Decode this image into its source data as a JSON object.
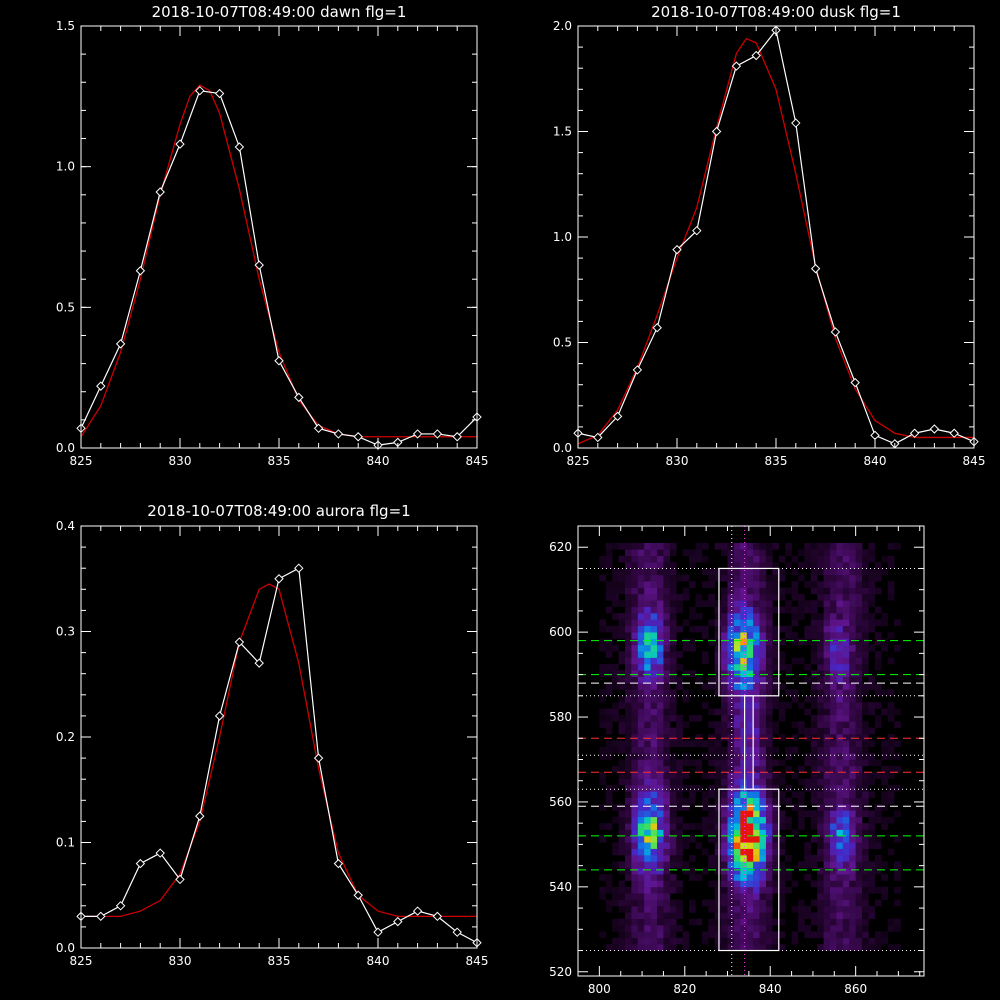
{
  "colors": {
    "background": "#000000",
    "axes": "#ffffff",
    "data": "#ffffff",
    "fit": "#cc0000",
    "guide_green": "#00ff00",
    "guide_red": "#ff3030",
    "guide_white": "#ffffff",
    "guide_magenta": "#ff33ff"
  },
  "chart_data": [
    {
      "type": "line",
      "title": "2018-10-07T08:49:00 dawn flg=1",
      "xlim": [
        825,
        845
      ],
      "ylim": [
        0,
        1.5
      ],
      "xticks": [
        "825",
        "830",
        "835",
        "840",
        "845"
      ],
      "yticks": [
        "0.0",
        "0.5",
        "1.0",
        "1.5"
      ],
      "series": [
        {
          "role": "data",
          "x": [
            825,
            826,
            827,
            828,
            829,
            830,
            831,
            832,
            833,
            834,
            835,
            836,
            837,
            838,
            839,
            840,
            841,
            842,
            843,
            844,
            845
          ],
          "y": [
            0.07,
            0.22,
            0.37,
            0.63,
            0.91,
            1.08,
            1.27,
            1.26,
            1.07,
            0.65,
            0.31,
            0.18,
            0.07,
            0.05,
            0.04,
            0.01,
            0.02,
            0.05,
            0.05,
            0.04,
            0.11
          ]
        },
        {
          "role": "fit",
          "x": [
            825,
            826,
            827,
            828,
            829,
            830,
            830.5,
            831,
            831.5,
            832,
            833,
            834,
            835,
            836,
            837,
            838,
            839,
            840,
            841,
            842,
            843,
            844,
            845
          ],
          "y": [
            0.04,
            0.15,
            0.34,
            0.6,
            0.9,
            1.15,
            1.25,
            1.29,
            1.27,
            1.19,
            0.92,
            0.6,
            0.34,
            0.17,
            0.08,
            0.05,
            0.04,
            0.04,
            0.04,
            0.04,
            0.04,
            0.04,
            0.04
          ]
        }
      ]
    },
    {
      "type": "line",
      "title": "2018-10-07T08:49:00 dusk flg=1",
      "xlim": [
        825,
        845
      ],
      "ylim": [
        0,
        2.0
      ],
      "xticks": [
        "825",
        "830",
        "835",
        "840",
        "845"
      ],
      "yticks": [
        "0.0",
        "0.5",
        "1.0",
        "1.5",
        "2.0"
      ],
      "series": [
        {
          "role": "data",
          "x": [
            825,
            826,
            827,
            828,
            829,
            830,
            831,
            832,
            833,
            834,
            835,
            836,
            837,
            838,
            839,
            840,
            841,
            842,
            843,
            844,
            845
          ],
          "y": [
            0.07,
            0.05,
            0.15,
            0.37,
            0.57,
            0.94,
            1.03,
            1.5,
            1.81,
            1.86,
            1.98,
            1.54,
            0.85,
            0.55,
            0.31,
            0.06,
            0.02,
            0.07,
            0.09,
            0.07,
            0.03
          ]
        },
        {
          "role": "fit",
          "x": [
            825,
            826,
            827,
            828,
            829,
            830,
            831,
            832,
            833,
            833.5,
            834,
            835,
            836,
            837,
            838,
            839,
            840,
            841,
            842,
            843,
            844,
            845
          ],
          "y": [
            0.02,
            0.06,
            0.18,
            0.38,
            0.63,
            0.9,
            1.14,
            1.52,
            1.87,
            1.94,
            1.92,
            1.7,
            1.3,
            0.86,
            0.52,
            0.28,
            0.13,
            0.07,
            0.05,
            0.05,
            0.05,
            0.05
          ]
        }
      ]
    },
    {
      "type": "line",
      "title": "2018-10-07T08:49:00 aurora flg=1",
      "xlim": [
        825,
        845
      ],
      "ylim": [
        0,
        0.4
      ],
      "xticks": [
        "825",
        "830",
        "835",
        "840",
        "845"
      ],
      "yticks": [
        "0.0",
        "0.1",
        "0.2",
        "0.3",
        "0.4"
      ],
      "series": [
        {
          "role": "data",
          "x": [
            825,
            826,
            827,
            828,
            829,
            830,
            831,
            832,
            833,
            834,
            835,
            836,
            837,
            838,
            839,
            840,
            841,
            842,
            843,
            844,
            845
          ],
          "y": [
            0.03,
            0.03,
            0.04,
            0.08,
            0.09,
            0.065,
            0.125,
            0.22,
            0.29,
            0.27,
            0.35,
            0.36,
            0.18,
            0.08,
            0.05,
            0.015,
            0.025,
            0.035,
            0.03,
            0.015,
            0.005
          ]
        },
        {
          "role": "fit",
          "x": [
            825,
            826,
            827,
            828,
            829,
            830,
            831,
            832,
            833,
            834,
            834.5,
            835,
            836,
            837,
            838,
            839,
            840,
            841,
            842,
            843,
            844,
            845
          ],
          "y": [
            0.03,
            0.03,
            0.03,
            0.035,
            0.045,
            0.07,
            0.12,
            0.2,
            0.29,
            0.34,
            0.345,
            0.34,
            0.27,
            0.17,
            0.09,
            0.05,
            0.035,
            0.03,
            0.03,
            0.03,
            0.03,
            0.03
          ]
        }
      ]
    },
    {
      "type": "heatmap",
      "title": "",
      "xlim": [
        795,
        876
      ],
      "ylim": [
        519,
        625
      ],
      "xticks": [
        "800",
        "820",
        "840",
        "860"
      ],
      "yticks": [
        "520",
        "540",
        "560",
        "580",
        "600",
        "620"
      ],
      "blobs": [
        {
          "x": 811,
          "y": 596,
          "sx": 2.2,
          "sy": 5,
          "amp": 0.45
        },
        {
          "x": 811,
          "y": 552,
          "sx": 2.4,
          "sy": 6,
          "amp": 0.55
        },
        {
          "x": 833,
          "y": 595,
          "sx": 2.6,
          "sy": 6,
          "amp": 0.62
        },
        {
          "x": 834,
          "y": 551,
          "sx": 2.8,
          "sy": 6.5,
          "amp": 1.0
        },
        {
          "x": 856,
          "y": 551,
          "sx": 2.0,
          "sy": 4,
          "amp": 0.35
        },
        {
          "x": 855,
          "y": 594,
          "sx": 2.0,
          "sy": 5,
          "amp": 0.18
        },
        {
          "x": 834,
          "y": 575,
          "sx": 2.0,
          "sy": 9,
          "amp": 0.14
        }
      ],
      "boxes": [
        {
          "x0": 828,
          "x1": 842,
          "y0": 585,
          "y1": 615
        },
        {
          "x0": 834,
          "x1": 836,
          "y0": 563,
          "y1": 585
        },
        {
          "x0": 828,
          "x1": 842,
          "y0": 525,
          "y1": 563
        }
      ],
      "hlines": [
        {
          "y": 615,
          "style": "dotted",
          "color": "white"
        },
        {
          "y": 598,
          "style": "dashed",
          "color": "green"
        },
        {
          "y": 590,
          "style": "dashed",
          "color": "green"
        },
        {
          "y": 588,
          "style": "dashed",
          "color": "white"
        },
        {
          "y": 585,
          "style": "dotted",
          "color": "white"
        },
        {
          "y": 575,
          "style": "dashed",
          "color": "red"
        },
        {
          "y": 571,
          "style": "dotted",
          "color": "white"
        },
        {
          "y": 567,
          "style": "dashed",
          "color": "red"
        },
        {
          "y": 563,
          "style": "dotted",
          "color": "white"
        },
        {
          "y": 559,
          "style": "dashed",
          "color": "white"
        },
        {
          "y": 552,
          "style": "dashed",
          "color": "green"
        },
        {
          "y": 544,
          "style": "dashed",
          "color": "green"
        },
        {
          "y": 525,
          "style": "dotted",
          "color": "white"
        }
      ],
      "vlines": [
        {
          "x": 831,
          "style": "dotted",
          "color": "white"
        },
        {
          "x": 834,
          "style": "dotted",
          "color": "magenta"
        }
      ]
    }
  ]
}
